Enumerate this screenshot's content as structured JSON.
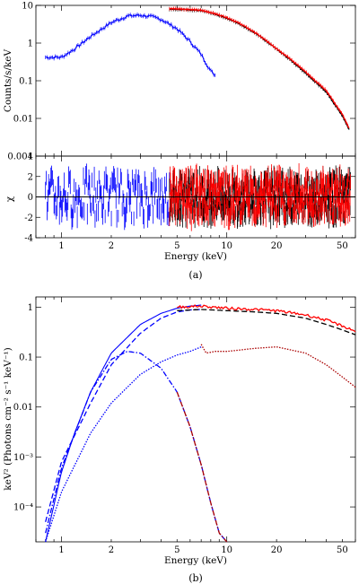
{
  "chart_data": [
    {
      "panel_label": "(a)",
      "type": "line",
      "ylabel": "Counts/s/keV",
      "xlim": [
        0.7,
        60
      ],
      "ylim": [
        0.001,
        10
      ],
      "xscale": "log",
      "yscale": "log",
      "grid": false,
      "y_ticks": [
        {
          "value": 0.001,
          "label": "0.001"
        },
        {
          "value": 0.01,
          "label": "0.01"
        },
        {
          "value": 0.1,
          "label": "0.1"
        },
        {
          "value": 1,
          "label": "1"
        },
        {
          "value": 10,
          "label": "10"
        }
      ],
      "series": [
        {
          "color": "#0000ff",
          "type": "step-with-errors",
          "x": [
            0.8,
            1.0,
            1.2,
            1.5,
            2.0,
            2.5,
            3.0,
            3.5,
            4.0,
            5.0,
            6.0,
            7.0,
            8.0,
            8.5
          ],
          "y": [
            0.42,
            0.42,
            0.7,
            1.5,
            3.5,
            5.2,
            5.5,
            5.0,
            4.3,
            2.4,
            1.1,
            0.5,
            0.18,
            0.14
          ]
        },
        {
          "color": "#000000",
          "type": "data-with-errors",
          "x": [
            4.5,
            5,
            6,
            7,
            8,
            10,
            12,
            15,
            20,
            25,
            30,
            40,
            50,
            55
          ],
          "y": [
            8.0,
            7.9,
            7.6,
            7.2,
            6.3,
            4.6,
            3.2,
            1.8,
            0.7,
            0.32,
            0.16,
            0.05,
            0.012,
            0.005
          ]
        },
        {
          "color": "#ff0000",
          "type": "data-with-errors",
          "x": [
            4.5,
            5,
            6,
            7,
            8,
            10,
            12,
            15,
            20,
            25,
            30,
            40,
            50,
            55
          ],
          "y": [
            8.2,
            8.1,
            7.8,
            7.4,
            6.5,
            4.8,
            3.3,
            1.85,
            0.72,
            0.34,
            0.17,
            0.055,
            0.013,
            0.0055
          ]
        }
      ]
    },
    {
      "type": "line",
      "ylabel": "χ",
      "xlabel": "Energy (keV)",
      "xlim": [
        0.7,
        60
      ],
      "ylim": [
        -4,
        4
      ],
      "xscale": "log",
      "y_ticks": [
        {
          "value": -4,
          "label": "-4"
        },
        {
          "value": -2,
          "label": "-2"
        },
        {
          "value": 0,
          "label": "0"
        },
        {
          "value": 2,
          "label": "2"
        },
        {
          "value": 4,
          "label": "4"
        }
      ],
      "x_ticks": [
        {
          "value": 1,
          "label": "1"
        },
        {
          "value": 2,
          "label": "2"
        },
        {
          "value": 5,
          "label": "5"
        },
        {
          "value": 10,
          "label": "10"
        },
        {
          "value": 20,
          "label": "20"
        },
        {
          "value": 50,
          "label": "50"
        }
      ],
      "reference_line": 0,
      "series": [
        {
          "color": "#0000ff",
          "x_range": [
            0.8,
            4.5
          ],
          "spread": 2.2
        },
        {
          "color": "#000000",
          "x_range": [
            4.5,
            56
          ],
          "spread": 2.0
        },
        {
          "color": "#ff0000",
          "x_range": [
            4.5,
            56
          ],
          "spread": 2.2
        }
      ]
    },
    {
      "panel_label": "(b)",
      "type": "line",
      "ylabel": "keV² (Photons cm⁻² s⁻¹ keV⁻¹)",
      "xlabel": "Energy (keV)",
      "xlim": [
        0.7,
        60
      ],
      "ylim": [
        2e-05,
        1.6
      ],
      "xscale": "log",
      "yscale": "log",
      "y_ticks": [
        {
          "value": 0.0001,
          "label": "10⁻⁴"
        },
        {
          "value": 0.001,
          "label": "10⁻³"
        },
        {
          "value": 0.01,
          "label": "0.01"
        },
        {
          "value": 0.1,
          "label": "0.1"
        },
        {
          "value": 1,
          "label": "1"
        }
      ],
      "x_ticks": [
        {
          "value": 1,
          "label": "1"
        },
        {
          "value": 2,
          "label": "2"
        },
        {
          "value": 5,
          "label": "5"
        },
        {
          "value": 10,
          "label": "10"
        },
        {
          "value": 20,
          "label": "20"
        },
        {
          "value": 50,
          "label": "50"
        }
      ],
      "series": [
        {
          "color": "#0000ff",
          "style": "step",
          "x": [
            0.8,
            1.0,
            1.2,
            1.5,
            2.0,
            3.0,
            4.0,
            5.0,
            6.0,
            7.0
          ],
          "y": [
            2e-05,
            0.0005,
            0.003,
            0.02,
            0.12,
            0.45,
            0.75,
            0.95,
            1.05,
            1.1
          ]
        },
        {
          "color": "#0000ff",
          "style": "dashed",
          "x": [
            0.8,
            1.0,
            1.5,
            2.0,
            3.0,
            4.0,
            5.0,
            6.0,
            7.0
          ],
          "y": [
            5e-05,
            0.0008,
            0.012,
            0.07,
            0.3,
            0.6,
            0.8,
            0.88,
            0.9
          ]
        },
        {
          "color": "#0000ff",
          "style": "dashdot",
          "x": [
            0.8,
            1.0,
            1.5,
            2.0,
            2.5,
            3.0,
            4.0,
            5.0,
            6.0,
            7.0,
            8.0,
            9.0,
            10.0
          ],
          "y": [
            3e-05,
            0.0006,
            0.02,
            0.09,
            0.13,
            0.12,
            0.06,
            0.02,
            0.004,
            0.0007,
            0.00012,
            3e-05,
            2e-05
          ]
        },
        {
          "color": "#0000ff",
          "style": "dotted",
          "x": [
            0.8,
            1.0,
            1.5,
            2.0,
            3.0,
            4.0,
            5.0,
            6.0,
            7.0
          ],
          "y": [
            2e-05,
            0.0002,
            0.003,
            0.012,
            0.045,
            0.08,
            0.11,
            0.13,
            0.16
          ]
        },
        {
          "color": "#000000",
          "style": "dashed",
          "x": [
            5,
            7,
            10,
            15,
            20,
            30,
            40,
            50,
            60
          ],
          "y": [
            0.85,
            0.9,
            0.85,
            0.8,
            0.75,
            0.6,
            0.45,
            0.35,
            0.28
          ]
        },
        {
          "color": "#ff0000",
          "style": "solid",
          "x": [
            5,
            7,
            10,
            15,
            20,
            30,
            40,
            50,
            60
          ],
          "y": [
            1.0,
            1.05,
            0.95,
            0.9,
            0.85,
            0.7,
            0.55,
            0.42,
            0.33
          ]
        },
        {
          "color": "#aa0000",
          "style": "dashdot",
          "x": [
            5,
            6,
            7,
            8,
            9,
            10
          ],
          "y": [
            0.02,
            0.004,
            0.0007,
            0.00012,
            3e-05,
            2e-05
          ]
        },
        {
          "color": "#aa0000",
          "style": "dotted",
          "x": [
            7.0,
            7.5,
            8.5,
            10,
            15,
            20,
            30,
            40,
            50,
            60
          ],
          "y": [
            0.18,
            0.12,
            0.13,
            0.13,
            0.15,
            0.16,
            0.12,
            0.07,
            0.04,
            0.025
          ]
        }
      ]
    }
  ]
}
